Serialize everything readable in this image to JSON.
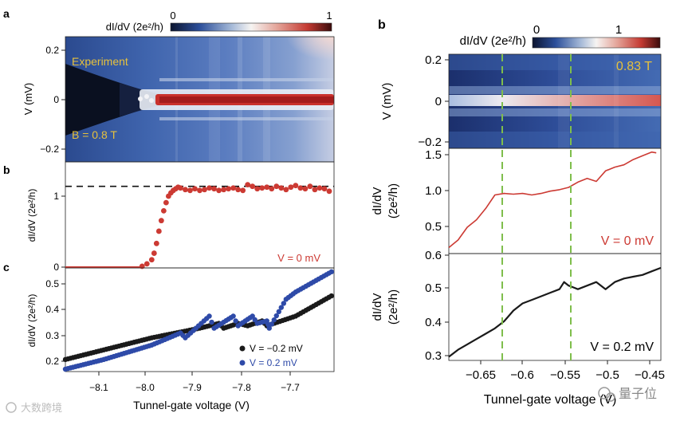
{
  "left_figure": {
    "panel_a": {
      "letter": "a",
      "colorbar": {
        "label": "dI/dV (2e²/h)",
        "min_label": "0",
        "max_label": "1"
      },
      "ylabel": "V (mV)",
      "yticks": [
        "0.2",
        "0",
        "−0.2"
      ],
      "annotation": "Experiment",
      "field_label": "B = 0.8 T"
    },
    "panel_b": {
      "letter": "b",
      "ylabel": "dI/dV (2e²/h)",
      "yticks": [
        "1",
        "0"
      ],
      "legend": "V = 0 mV"
    },
    "panel_c": {
      "letter": "c",
      "ylabel": "dI/dV (2e²/h)",
      "yticks": [
        "0.5",
        "0.4",
        "0.3",
        "0.2"
      ],
      "legend": [
        {
          "label": "V = −0.2 mV",
          "color": "#1a1a1a"
        },
        {
          "label": "V =  0.2 mV",
          "color": "#2e4aa8"
        }
      ]
    },
    "xticks": [
      "−8.1",
      "−8.0",
      "−7.9",
      "−7.8",
      "−7.7"
    ],
    "xlabel": "Tunnel-gate voltage (V)"
  },
  "right_figure": {
    "panel_b": {
      "letter": "b",
      "colorbar": {
        "label": "dI/dV (2e²/h)",
        "min_label": "0",
        "max_label": "1"
      },
      "ylabel": "V (mV)",
      "yticks": [
        "0.2",
        "0",
        "−0.2"
      ],
      "field_label": "0.83 T"
    },
    "middle": {
      "ylabel_line1": "dI/dV",
      "ylabel_line2": "(2e²/h)",
      "yticks": [
        "1.5",
        "1.0",
        "0.5"
      ],
      "legend": "V = 0 mV"
    },
    "bottom": {
      "ylabel_line1": "dI/dV",
      "ylabel_line2": "(2e²/h)",
      "yticks": [
        "0.6",
        "0.5",
        "0.4",
        "0.3"
      ],
      "legend": "V = 0.2 mV"
    },
    "xticks": [
      "−0.65",
      "−0.6",
      "−0.55",
      "−0.5",
      "−0.45"
    ],
    "xlabel": "Tunnel-gate voltage (V)"
  },
  "watermarks": {
    "left": "大数跨境",
    "right": "量子位"
  },
  "chart_data": [
    {
      "type": "scatter",
      "title": "Left b: zero-bias conductance vs tunnel-gate voltage",
      "xlabel": "Tunnel-gate voltage (V)",
      "ylabel": "dI/dV (2e²/h)",
      "xlim": [
        -8.18,
        -7.62
      ],
      "ylim": [
        0,
        1.3
      ],
      "reference_line": 1.0,
      "series": [
        {
          "name": "V = 0 mV",
          "color": "#cc3a33",
          "x": [
            -8.02,
            -8.01,
            -8.0,
            -7.995,
            -7.99,
            -7.985,
            -7.98,
            -7.975,
            -7.97,
            -7.965,
            -7.96,
            -7.955,
            -7.95,
            -7.945,
            -7.94,
            -7.93,
            -7.92,
            -7.91,
            -7.9,
            -7.89,
            -7.88,
            -7.87,
            -7.86,
            -7.85,
            -7.84,
            -7.83,
            -7.82,
            -7.81,
            -7.8,
            -7.79,
            -7.78,
            -7.77,
            -7.76,
            -7.75,
            -7.74,
            -7.73,
            -7.72,
            -7.71,
            -7.7,
            -7.69,
            -7.68,
            -7.67,
            -7.66,
            -7.65,
            -7.64,
            -7.63
          ],
          "y": [
            0.02,
            0.05,
            0.1,
            0.18,
            0.3,
            0.45,
            0.58,
            0.7,
            0.8,
            0.88,
            0.92,
            0.95,
            0.97,
            0.99,
            0.98,
            0.96,
            0.95,
            0.97,
            0.95,
            0.96,
            0.98,
            0.97,
            0.95,
            0.96,
            0.97,
            0.98,
            0.96,
            0.95,
            1.02,
            1.0,
            0.97,
            0.98,
            0.99,
            0.97,
            1.0,
            0.98,
            0.96,
            0.99,
            1.01,
            0.98,
            0.97,
            1.0,
            0.96,
            0.98,
            0.97,
            0.94
          ]
        }
      ]
    },
    {
      "type": "scatter",
      "title": "Left c: finite-bias conductance",
      "xlabel": "Tunnel-gate voltage (V)",
      "ylabel": "dI/dV (2e²/h)",
      "xlim": [
        -8.18,
        -7.62
      ],
      "ylim": [
        0.15,
        0.58
      ],
      "series": [
        {
          "name": "V = −0.2 mV",
          "color": "#1a1a1a",
          "x": [
            -8.18,
            -8.1,
            -8.0,
            -7.9,
            -7.86,
            -7.85,
            -7.82,
            -7.8,
            -7.77,
            -7.76,
            -7.7,
            -7.62
          ],
          "y": [
            0.2,
            0.24,
            0.29,
            0.33,
            0.35,
            0.33,
            0.35,
            0.34,
            0.36,
            0.34,
            0.38,
            0.47
          ]
        },
        {
          "name": "V = 0.2 mV",
          "color": "#2e4aa8",
          "x": [
            -8.18,
            -8.1,
            -8.0,
            -7.94,
            -7.93,
            -7.88,
            -7.87,
            -7.83,
            -7.82,
            -7.79,
            -7.78,
            -7.76,
            -7.755,
            -7.72,
            -7.7,
            -7.62
          ],
          "y": [
            0.16,
            0.2,
            0.26,
            0.31,
            0.29,
            0.38,
            0.33,
            0.38,
            0.34,
            0.38,
            0.35,
            0.36,
            0.33,
            0.45,
            0.48,
            0.57
          ]
        }
      ]
    },
    {
      "type": "line",
      "title": "Right middle: zero-bias conductance",
      "xlabel": "Tunnel-gate voltage (V)",
      "ylabel": "dI/dV (2e²/h)",
      "xlim": [
        -0.67,
        -0.44
      ],
      "ylim": [
        0.1,
        1.5
      ],
      "markers": [
        -0.62,
        -0.545
      ],
      "series": [
        {
          "name": "V = 0 mV",
          "color": "#cc3a33",
          "x": [
            -0.67,
            -0.66,
            -0.65,
            -0.64,
            -0.63,
            -0.62,
            -0.61,
            -0.6,
            -0.59,
            -0.58,
            -0.57,
            -0.56,
            -0.55,
            -0.54,
            -0.53,
            -0.52,
            -0.51,
            -0.5,
            -0.49,
            -0.48,
            -0.47,
            -0.46,
            -0.45,
            -0.445
          ],
          "y": [
            0.18,
            0.28,
            0.45,
            0.55,
            0.7,
            0.88,
            0.9,
            0.89,
            0.9,
            0.88,
            0.9,
            0.93,
            0.95,
            0.98,
            1.05,
            1.1,
            1.06,
            1.2,
            1.25,
            1.28,
            1.35,
            1.4,
            1.45,
            1.44
          ]
        }
      ]
    },
    {
      "type": "line",
      "title": "Right bottom: finite-bias conductance",
      "xlabel": "Tunnel-gate voltage (V)",
      "ylabel": "dI/dV (2e²/h)",
      "xlim": [
        -0.67,
        -0.44
      ],
      "ylim": [
        0.3,
        0.6
      ],
      "markers": [
        -0.62,
        -0.545
      ],
      "series": [
        {
          "name": "V = 0.2 mV",
          "color": "#1a1a1a",
          "x": [
            -0.67,
            -0.66,
            -0.65,
            -0.64,
            -0.63,
            -0.62,
            -0.61,
            -0.6,
            -0.59,
            -0.58,
            -0.57,
            -0.56,
            -0.55,
            -0.545,
            -0.54,
            -0.535,
            -0.53,
            -0.52,
            -0.51,
            -0.5,
            -0.49,
            -0.48,
            -0.47,
            -0.46,
            -0.45,
            -0.44
          ],
          "y": [
            0.31,
            0.33,
            0.345,
            0.36,
            0.375,
            0.39,
            0.41,
            0.44,
            0.46,
            0.47,
            0.48,
            0.49,
            0.5,
            0.52,
            0.51,
            0.505,
            0.5,
            0.51,
            0.52,
            0.5,
            0.52,
            0.53,
            0.535,
            0.54,
            0.55,
            0.56
          ]
        }
      ]
    }
  ]
}
